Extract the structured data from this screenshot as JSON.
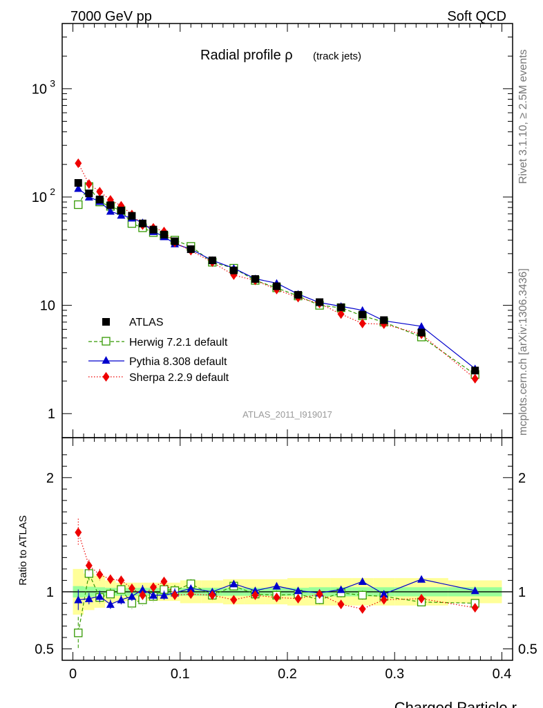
{
  "header": {
    "left": "7000 GeV pp",
    "right": "Soft QCD"
  },
  "side_labels": {
    "rivet": "Rivet 3.1.10, ≥ 2.5M events",
    "mcplots": "mcplots.cern.ch [arXiv:1306.3436]"
  },
  "chart_data": {
    "type": "scatter",
    "title_main": "Radial profile ρ",
    "title_sub": "(track jets)",
    "watermark": "ATLAS_2011_I919017",
    "xlabel": "Charged Particle r",
    "ratio_ylabel": "Ratio to ATLAS",
    "xlim": [
      -0.01,
      0.41
    ],
    "ylim_main": [
      0.6,
      4000
    ],
    "ylim_ratio": [
      0.4,
      2.35
    ],
    "main_y_ticks": [
      {
        "value": 1,
        "label": "1"
      },
      {
        "value": 10,
        "label": "10"
      },
      {
        "value": 100,
        "label": "10",
        "sup": "2"
      },
      {
        "value": 1000,
        "label": "10",
        "sup": "3"
      }
    ],
    "ratio_y_ticks": [
      {
        "value": 0.5,
        "label": "0.5"
      },
      {
        "value": 1,
        "label": "1"
      },
      {
        "value": 2,
        "label": "2"
      }
    ],
    "x_ticks": [
      {
        "value": 0,
        "label": "0"
      },
      {
        "value": 0.1,
        "label": "0.1"
      },
      {
        "value": 0.2,
        "label": "0.2"
      },
      {
        "value": 0.3,
        "label": "0.3"
      },
      {
        "value": 0.4,
        "label": "0.4"
      }
    ],
    "x": [
      0.005,
      0.015,
      0.025,
      0.035,
      0.045,
      0.055,
      0.065,
      0.075,
      0.085,
      0.095,
      0.11,
      0.13,
      0.15,
      0.17,
      0.19,
      0.21,
      0.23,
      0.25,
      0.27,
      0.29,
      0.325,
      0.375
    ],
    "bin_edges": [
      0,
      0.01,
      0.02,
      0.03,
      0.04,
      0.05,
      0.06,
      0.07,
      0.08,
      0.09,
      0.1,
      0.12,
      0.14,
      0.16,
      0.18,
      0.2,
      0.22,
      0.24,
      0.26,
      0.28,
      0.3,
      0.35,
      0.4
    ],
    "data": {
      "name": "ATLAS",
      "values": [
        135,
        108,
        95,
        84,
        75,
        67,
        57,
        50,
        45,
        39,
        33,
        26,
        21,
        17.5,
        15,
        12.5,
        10.7,
        9.6,
        8.2,
        7.3,
        5.6,
        2.5
      ],
      "stat_band": [
        0.05,
        0.045,
        0.04,
        0.035,
        0.035,
        0.035,
        0.035,
        0.035,
        0.035,
        0.035,
        0.035,
        0.035,
        0.035,
        0.035,
        0.035,
        0.035,
        0.04,
        0.04,
        0.04,
        0.04,
        0.04,
        0.04
      ],
      "total_band": [
        0.2,
        0.16,
        0.14,
        0.1,
        0.08,
        0.08,
        0.08,
        0.08,
        0.08,
        0.08,
        0.1,
        0.1,
        0.11,
        0.11,
        0.11,
        0.12,
        0.12,
        0.12,
        0.12,
        0.12,
        0.12,
        0.1
      ]
    },
    "series": [
      {
        "name": "Herwig 7.2.1 default",
        "color": "#339900",
        "marker": "open-square",
        "dash": "dashed",
        "values": [
          85,
          125,
          90,
          82,
          75,
          57,
          52,
          47,
          44,
          40,
          35,
          25,
          22,
          17,
          14.5,
          12.2,
          10,
          9.5,
          8,
          7,
          5.1,
          2.3
        ],
        "ratio": [
          0.64,
          1.16,
          0.95,
          0.98,
          1.02,
          0.9,
          0.93,
          0.96,
          1.02,
          1.01,
          1.07,
          0.97,
          1.05,
          0.98,
          0.97,
          0.98,
          0.93,
          0.99,
          0.97,
          0.96,
          0.91,
          0.9
        ],
        "ratio_err": [
          0.14,
          0.06,
          0.05,
          0.05,
          0.05,
          0.05,
          0.05,
          0.05,
          0.05,
          0.05,
          0.04,
          0.04,
          0.04,
          0.04,
          0.04,
          0.04,
          0.04,
          0.04,
          0.04,
          0.04,
          0.03,
          0.03
        ]
      },
      {
        "name": "Pythia 8.308 default",
        "color": "#0000cc",
        "marker": "triangle",
        "dash": "solid",
        "values": [
          120,
          100,
          91,
          74,
          68,
          64,
          58,
          48,
          43,
          37,
          33,
          26,
          22,
          17.6,
          16,
          12.7,
          10.6,
          9.8,
          9,
          7.2,
          6.4,
          2.6
        ],
        "ratio": [
          0.93,
          0.94,
          0.96,
          0.89,
          0.93,
          0.96,
          1.02,
          0.97,
          0.97,
          0.99,
          1.03,
          1.0,
          1.07,
          1.01,
          1.05,
          1.01,
          0.99,
          1.02,
          1.09,
          0.98,
          1.11,
          1.01
        ],
        "ratio_err": [
          0.09,
          0.05,
          0.05,
          0.04,
          0.04,
          0.04,
          0.04,
          0.04,
          0.04,
          0.04,
          0.03,
          0.03,
          0.03,
          0.03,
          0.03,
          0.03,
          0.03,
          0.03,
          0.03,
          0.03,
          0.02,
          0.02
        ]
      },
      {
        "name": "Sherpa 2.2.9 default",
        "color": "#ee0000",
        "marker": "diamond",
        "dash": "dotted",
        "values": [
          205,
          132,
          112,
          94,
          83,
          69,
          55,
          52,
          48,
          38,
          32,
          25,
          19,
          17,
          14,
          11.8,
          10.4,
          8.3,
          6.8,
          6.7,
          5.4,
          2.1
        ],
        "ratio": [
          1.52,
          1.23,
          1.15,
          1.11,
          1.1,
          1.03,
          0.97,
          1.04,
          1.09,
          0.97,
          0.98,
          0.97,
          0.93,
          0.97,
          0.95,
          0.94,
          0.98,
          0.89,
          0.85,
          0.93,
          0.94,
          0.86
        ]
      }
    ],
    "sherpa_ratio_err": [
      0.12,
      0.05,
      0.05,
      0.04,
      0.04,
      0.04,
      0.04,
      0.04,
      0.04,
      0.04,
      0.03,
      0.03,
      0.03,
      0.03,
      0.03,
      0.03,
      0.03,
      0.03,
      0.03,
      0.03,
      0.02,
      0.02
    ],
    "legend": {
      "position": "lower-left",
      "entries": [
        "ATLAS",
        "Herwig 7.2.1 default",
        "Pythia 8.308 default",
        "Sherpa 2.2.9 default"
      ]
    }
  }
}
